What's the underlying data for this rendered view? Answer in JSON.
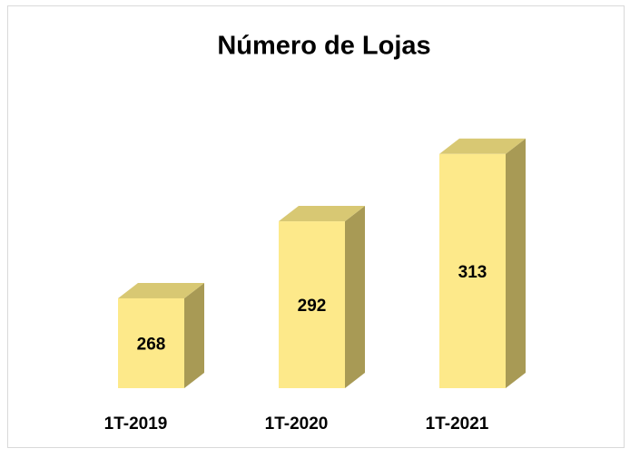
{
  "chart_data": {
    "type": "bar3d",
    "title": "Número de Lojas",
    "categories": [
      "1T-2019",
      "1T-2020",
      "1T-2021"
    ],
    "values": [
      268,
      292,
      313
    ],
    "color": "#fde98a",
    "ylim": [
      240,
      320
    ]
  }
}
